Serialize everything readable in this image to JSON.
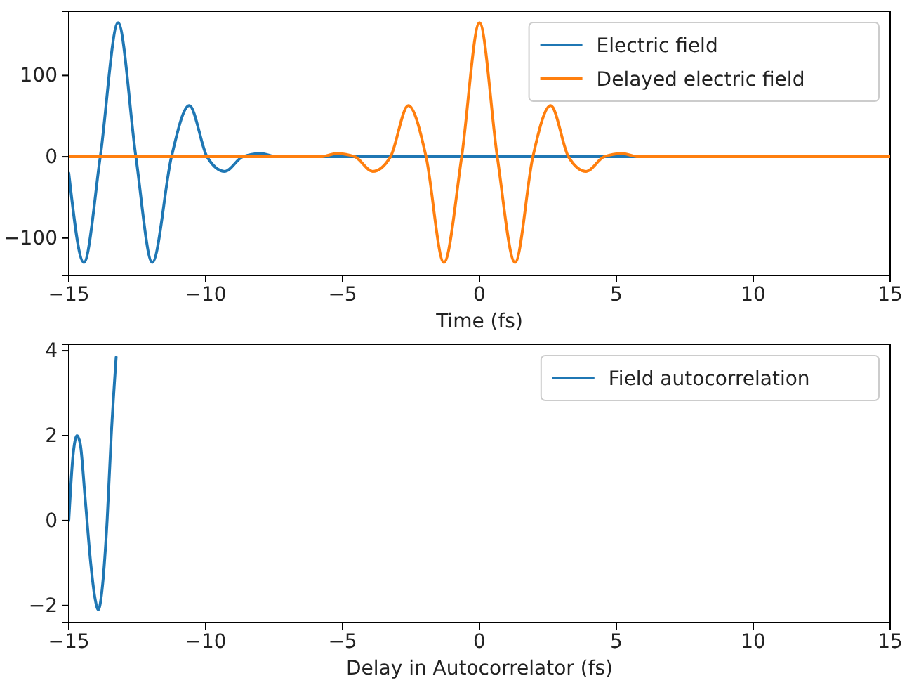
{
  "chart_data": [
    {
      "type": "line",
      "xlabel": "Time (fs)",
      "xlim": [
        -15,
        15
      ],
      "ylim": [
        -146,
        179
      ],
      "xticks": [
        {
          "value": -15,
          "label": "−15"
        },
        {
          "value": -10,
          "label": "−10"
        },
        {
          "value": -5,
          "label": "−5"
        },
        0,
        5,
        10,
        15
      ],
      "yticks": [
        {
          "value": -100,
          "label": "−100"
        },
        0,
        100
      ],
      "legend": "top right",
      "grid": false,
      "series": [
        {
          "name": "Electric field",
          "color": "#1f77b4",
          "x": [
            -15,
            -14.45,
            -13.85,
            -13.2,
            -12.55,
            -11.95,
            -11.25,
            -10.6,
            -9.95,
            -9.3,
            -8.65,
            -8.0,
            -7.4,
            15
          ],
          "values": [
            -20,
            -130,
            0,
            165,
            0,
            -130,
            0,
            63,
            0,
            -18,
            0,
            4,
            0,
            0
          ]
        },
        {
          "name": "Delayed electric field",
          "color": "#ff7f0e",
          "x": [
            -15,
            -5.8,
            -5.2,
            -4.55,
            -3.9,
            -3.25,
            -2.6,
            -1.95,
            -1.3,
            -0.65,
            0,
            0.65,
            1.3,
            1.95,
            2.6,
            3.25,
            3.9,
            4.55,
            5.2,
            5.8,
            15
          ],
          "values": [
            0,
            0,
            4,
            0,
            -18,
            0,
            63,
            0,
            -130,
            0,
            165,
            0,
            -130,
            0,
            63,
            0,
            -18,
            0,
            4,
            0,
            0
          ]
        }
      ]
    },
    {
      "type": "line",
      "xlabel": "Delay in Autocorrelator (fs)",
      "xlim": [
        -15,
        15
      ],
      "ylim": [
        -2.4,
        4.15
      ],
      "xticks": [
        {
          "value": -15,
          "label": "−15"
        },
        {
          "value": -10,
          "label": "−10"
        },
        {
          "value": -5,
          "label": "−5"
        },
        0,
        5,
        10,
        15
      ],
      "yticks": [
        {
          "value": -2,
          "label": "−2"
        },
        0,
        2,
        4
      ],
      "legend": "top right",
      "grid": false,
      "series": [
        {
          "name": "Field autocorrelation",
          "color": "#1f77b4",
          "x": [
            -15,
            -14.85,
            -14.7,
            -14.58,
            -14.4,
            -14.2,
            -14.05,
            -13.92,
            -13.78,
            -13.6,
            -13.45,
            -13.27
          ],
          "values": [
            0,
            1.5,
            2.0,
            1.8,
            0.5,
            -1.0,
            -1.8,
            -2.1,
            -1.6,
            0,
            2,
            3.85
          ]
        }
      ]
    }
  ]
}
